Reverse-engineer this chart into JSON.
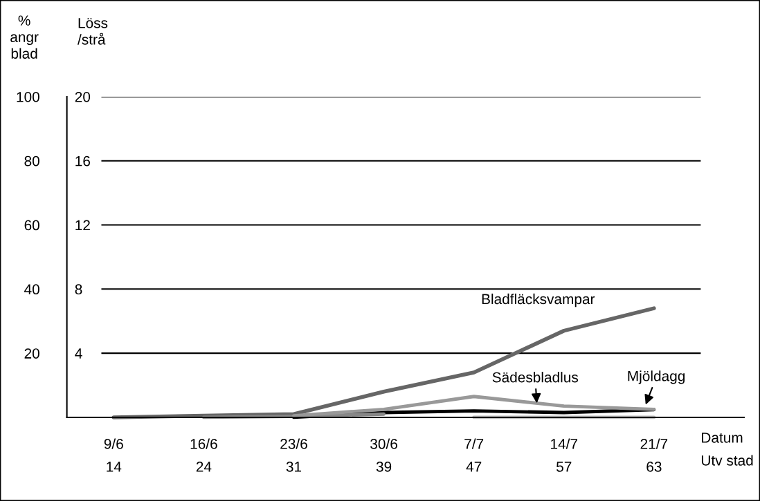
{
  "chart_data": {
    "type": "line",
    "categories": [
      "9/6\n14",
      "16/6\n24",
      "23/6\n31",
      "30/6\n39",
      "7/7\n47",
      "14/7\n57",
      "21/7\n63"
    ],
    "xlabel": "Datum\nUtv stad",
    "ylabel": "%\nangr\nblad",
    "y2label": "Löss\n/strå",
    "ylim": [
      0,
      100
    ],
    "yticks": [
      20,
      40,
      60,
      80,
      100
    ],
    "y2lim": [
      0,
      20
    ],
    "y2ticks": [
      4,
      8,
      12,
      16,
      20
    ],
    "grid": "y",
    "legend": false,
    "marker": "none",
    "line_style": "solid",
    "series": [
      {
        "name": "Bladfläcksvampar",
        "color": "#666666",
        "values": [
          0,
          0.5,
          1,
          8,
          14,
          27,
          34
        ]
      },
      {
        "name": "Sädesbladlus",
        "color": "#999999",
        "axis": "y2",
        "values": [
          null,
          null,
          0.1,
          0.5,
          1.3,
          0.7,
          0.5
        ]
      },
      {
        "name": "Mjöldagg",
        "color": "#000000",
        "values": [
          null,
          null,
          0,
          1.5,
          2,
          1.5,
          2.4
        ]
      },
      {
        "color": "#888888",
        "values": [
          null,
          0,
          0.3,
          1,
          null,
          null,
          null
        ]
      },
      {
        "color": "#bbbbbb",
        "values": [
          null,
          null,
          null,
          null,
          0,
          0,
          0
        ]
      }
    ]
  }
}
